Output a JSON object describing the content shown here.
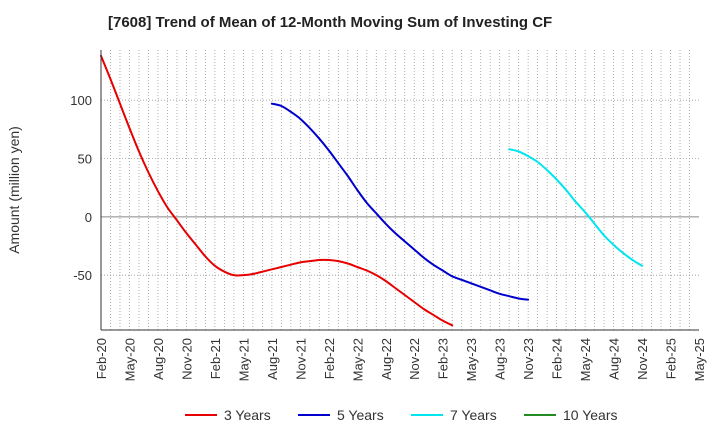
{
  "chart_data": {
    "type": "line",
    "title": "[7608]  Trend of Mean of 12-Month Moving Sum of Investing CF",
    "xlabel": "",
    "ylabel": "Amount (million yen)",
    "ylim": [
      -97,
      143
    ],
    "y_ticks": [
      100,
      50,
      0,
      -50
    ],
    "y_tick_labels": [
      "100",
      "50",
      "0",
      "-50"
    ],
    "x_tick_labels": [
      "Feb-20",
      "May-20",
      "Aug-20",
      "Nov-20",
      "Feb-21",
      "May-21",
      "Aug-21",
      "Nov-21",
      "Feb-22",
      "May-22",
      "Aug-22",
      "Nov-22",
      "Feb-23",
      "May-23",
      "Aug-23",
      "Nov-23",
      "Feb-24",
      "May-24",
      "Aug-24",
      "Nov-24",
      "Feb-25",
      "May-25"
    ],
    "grid": true,
    "legend_position": "bottom",
    "series": [
      {
        "name": "3 Years",
        "color": "#e60000",
        "points": [
          [
            0,
            138
          ],
          [
            1,
            118
          ],
          [
            2,
            97
          ],
          [
            3,
            76
          ],
          [
            4,
            56
          ],
          [
            5,
            38
          ],
          [
            6,
            22
          ],
          [
            7,
            8
          ],
          [
            8,
            -3
          ],
          [
            9,
            -14
          ],
          [
            10,
            -24
          ],
          [
            11,
            -34
          ],
          [
            12,
            -42
          ],
          [
            13,
            -47
          ],
          [
            14,
            -50
          ],
          [
            15,
            -50
          ],
          [
            16,
            -49
          ],
          [
            17,
            -47
          ],
          [
            18,
            -45
          ],
          [
            19,
            -43
          ],
          [
            20,
            -41
          ],
          [
            21,
            -39
          ],
          [
            22,
            -38
          ],
          [
            23,
            -37
          ],
          [
            24,
            -37
          ],
          [
            25,
            -38
          ],
          [
            26,
            -40
          ],
          [
            27,
            -43
          ],
          [
            28,
            -46
          ],
          [
            29,
            -50
          ],
          [
            30,
            -55
          ],
          [
            31,
            -61
          ],
          [
            32,
            -67
          ],
          [
            33,
            -73
          ],
          [
            34,
            -79
          ],
          [
            35,
            -84
          ],
          [
            36,
            -89
          ],
          [
            37,
            -93
          ]
        ]
      },
      {
        "name": "5 Years",
        "color": "#0000cc",
        "points": [
          [
            18,
            97
          ],
          [
            19,
            95
          ],
          [
            20,
            90
          ],
          [
            21,
            84
          ],
          [
            22,
            76
          ],
          [
            23,
            67
          ],
          [
            24,
            57
          ],
          [
            25,
            46
          ],
          [
            26,
            35
          ],
          [
            27,
            23
          ],
          [
            28,
            12
          ],
          [
            29,
            3
          ],
          [
            30,
            -6
          ],
          [
            31,
            -14
          ],
          [
            32,
            -21
          ],
          [
            33,
            -28
          ],
          [
            34,
            -35
          ],
          [
            35,
            -41
          ],
          [
            36,
            -46
          ],
          [
            37,
            -51
          ],
          [
            38,
            -54
          ],
          [
            39,
            -57
          ],
          [
            40,
            -60
          ],
          [
            41,
            -63
          ],
          [
            42,
            -66
          ],
          [
            43,
            -68
          ],
          [
            44,
            -70
          ],
          [
            45,
            -71
          ]
        ]
      },
      {
        "name": "7 Years",
        "color": "#00e5ee",
        "points": [
          [
            43,
            58
          ],
          [
            44,
            56
          ],
          [
            45,
            52
          ],
          [
            46,
            47
          ],
          [
            47,
            40
          ],
          [
            48,
            32
          ],
          [
            49,
            23
          ],
          [
            50,
            13
          ],
          [
            51,
            4
          ],
          [
            52,
            -6
          ],
          [
            53,
            -16
          ],
          [
            54,
            -24
          ],
          [
            55,
            -31
          ],
          [
            56,
            -37
          ],
          [
            57,
            -42
          ]
        ]
      },
      {
        "name": "10 Years",
        "color": "#228b22",
        "points": []
      }
    ]
  }
}
